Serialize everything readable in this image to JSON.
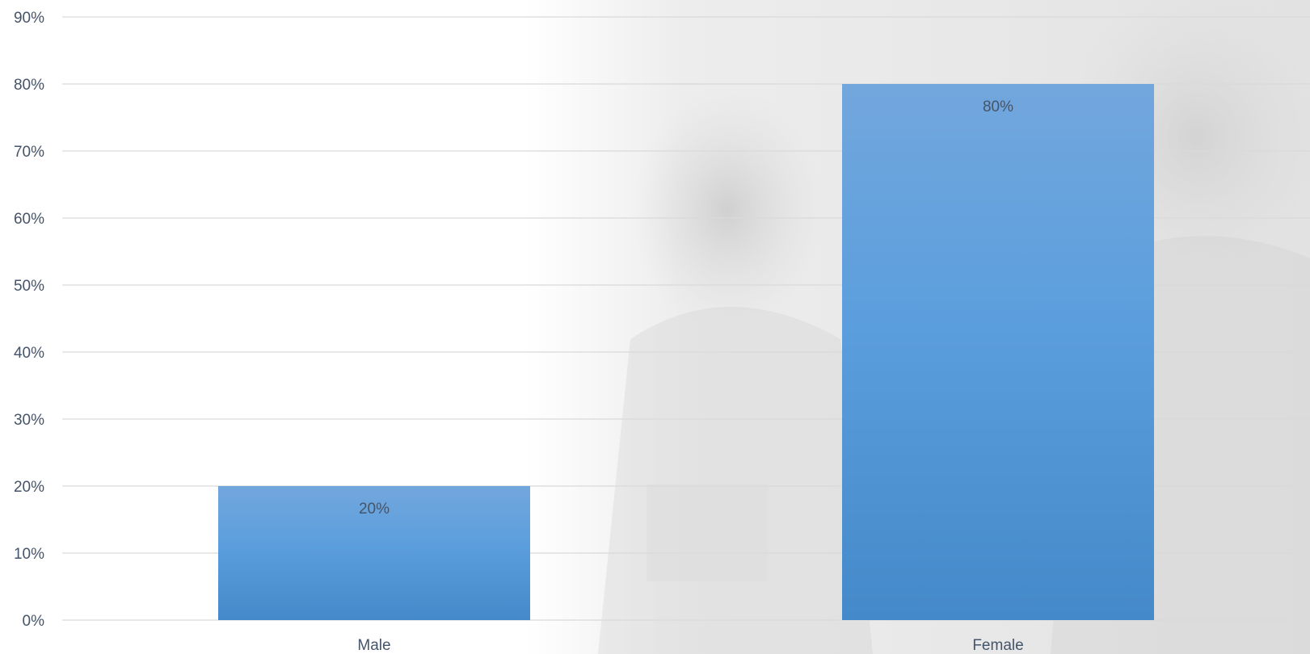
{
  "chart_data": {
    "type": "bar",
    "categories": [
      "Male",
      "Female"
    ],
    "values": [
      20,
      80
    ],
    "data_labels": [
      "20%",
      "80%"
    ],
    "y_ticks": [
      "0%",
      "10%",
      "20%",
      "30%",
      "40%",
      "50%",
      "60%",
      "70%",
      "80%",
      "90%"
    ],
    "ylim": [
      0,
      90
    ],
    "grid": true,
    "legend": "none",
    "title": "",
    "xlabel": "",
    "ylabel": "",
    "bar_color_top": "#72a7dd",
    "bar_color_bottom": "#4489c9",
    "gridline_color": "#d9d9d9",
    "text_color": "#44546a"
  },
  "background": {
    "description": "faded grayscale photo background on right side",
    "tint": "#e6e6e6"
  }
}
